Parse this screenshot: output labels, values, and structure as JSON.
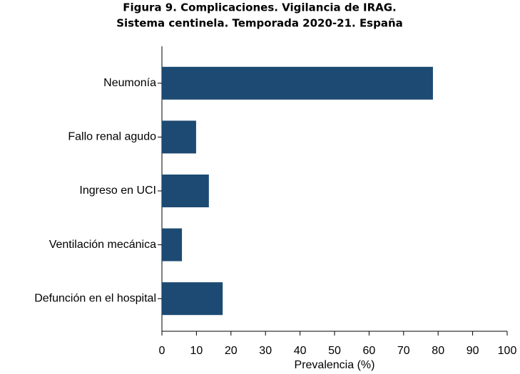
{
  "chart_data": {
    "type": "hbar",
    "title": [
      "Figura 9. Complicaciones. Vigilancia de IRAG.",
      "Sistema centinela. Temporada 2020-21. España"
    ],
    "xlabel": "Prevalencia (%)",
    "categories": [
      "Neumonía",
      "Fallo renal agudo",
      "Ingreso en UCI",
      "Ventilación mecánica",
      "Defunción en el hospital"
    ],
    "values": [
      78.5,
      9.9,
      13.6,
      5.8,
      17.6
    ],
    "color": "#1d4a72",
    "xlim": [
      0,
      100
    ],
    "xticks": [
      0,
      10,
      20,
      30,
      40,
      50,
      60,
      70,
      80,
      90,
      100
    ]
  }
}
